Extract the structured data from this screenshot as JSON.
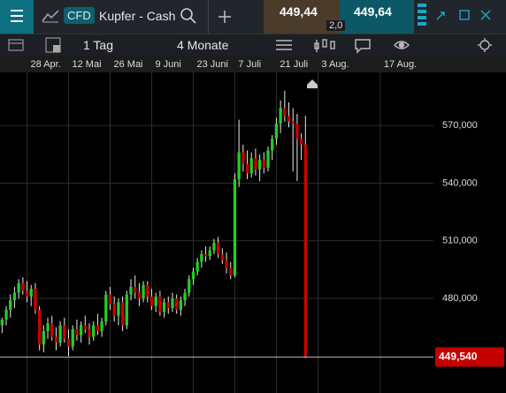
{
  "header": {
    "badge": "CFD",
    "instrument": "Kupfer - Cash",
    "bid": "449,44",
    "ask": "449,64",
    "spread": "2,0"
  },
  "toolbar": {
    "interval": "1 Tag",
    "range": "4 Monate"
  },
  "chart_data": {
    "type": "candlestick",
    "open": [
      466,
      469,
      474,
      479,
      483,
      488,
      484,
      481,
      485,
      474,
      456,
      463,
      467,
      460,
      457,
      466,
      459,
      455,
      464,
      461,
      466,
      464,
      460,
      466,
      463,
      468,
      482,
      477,
      471,
      478,
      466,
      482,
      486,
      483,
      480,
      487,
      481,
      476,
      481,
      473,
      478,
      475,
      480,
      474,
      479,
      483,
      490,
      494,
      499,
      503,
      502,
      505,
      509,
      503,
      500,
      496,
      492,
      542,
      556,
      550,
      545,
      553,
      547,
      552,
      548,
      557,
      563,
      571,
      579,
      575,
      572,
      571,
      563,
      560
    ],
    "high": [
      470,
      476,
      482,
      486,
      490,
      491,
      489,
      487,
      488,
      476,
      466,
      470,
      471,
      465,
      468,
      470,
      464,
      466,
      469,
      468,
      471,
      467,
      468,
      472,
      470,
      484,
      486,
      481,
      480,
      481,
      484,
      490,
      492,
      488,
      489,
      489,
      485,
      483,
      484,
      480,
      481,
      483,
      482,
      481,
      485,
      492,
      496,
      501,
      505,
      507,
      507,
      511,
      512,
      506,
      504,
      499,
      545,
      573,
      560,
      557,
      556,
      558,
      555,
      556,
      559,
      565,
      574,
      583,
      588,
      582,
      579,
      576,
      566,
      575
    ],
    "low": [
      462,
      466,
      470,
      475,
      480,
      482,
      478,
      476,
      472,
      453,
      452,
      459,
      458,
      453,
      455,
      457,
      450,
      453,
      458,
      457,
      462,
      456,
      458,
      461,
      460,
      466,
      474,
      468,
      466,
      463,
      464,
      479,
      480,
      476,
      478,
      478,
      474,
      473,
      471,
      470,
      472,
      473,
      472,
      471,
      476,
      481,
      487,
      492,
      496,
      499,
      500,
      503,
      501,
      498,
      493,
      490,
      491,
      538,
      546,
      542,
      543,
      544,
      541,
      545,
      546,
      552,
      560,
      566,
      572,
      569,
      546,
      541,
      552,
      449
    ],
    "close": [
      469,
      474,
      479,
      483,
      488,
      484,
      481,
      485,
      474,
      456,
      463,
      467,
      460,
      457,
      466,
      459,
      455,
      464,
      461,
      466,
      464,
      460,
      466,
      463,
      468,
      482,
      477,
      471,
      478,
      466,
      482,
      486,
      483,
      480,
      487,
      481,
      476,
      481,
      473,
      478,
      475,
      480,
      474,
      479,
      483,
      490,
      494,
      499,
      503,
      502,
      505,
      509,
      503,
      500,
      496,
      492,
      542,
      556,
      550,
      545,
      553,
      547,
      552,
      548,
      557,
      563,
      571,
      579,
      575,
      572,
      571,
      563,
      560,
      449.54
    ],
    "up_color": "#1fd11f",
    "down_color": "#cc0000",
    "wick_color": "#e8e8e8",
    "xlim": [
      -0.5,
      103.8
    ],
    "xticks": [
      {
        "value": 6,
        "label": "28 Apr."
      },
      {
        "value": 16,
        "label": "12 Mai"
      },
      {
        "value": 26,
        "label": "26 Mai"
      },
      {
        "value": 36,
        "label": "9 Juni"
      },
      {
        "value": 46,
        "label": "23 Juni"
      },
      {
        "value": 56,
        "label": "7 Juli"
      },
      {
        "value": 66,
        "label": "21 Juli"
      },
      {
        "value": 76,
        "label": "3 Aug."
      },
      {
        "value": 91,
        "label": "17 Aug."
      }
    ],
    "ylim": [
      430.8,
      597.6
    ],
    "yticks": [
      {
        "value": 480,
        "label": "480,000"
      },
      {
        "value": 510,
        "label": "510,000"
      },
      {
        "value": 540,
        "label": "540,000"
      },
      {
        "value": 570,
        "label": "570,000"
      }
    ],
    "last_price": {
      "value": 449.54,
      "label": "449,540"
    },
    "grid": true
  }
}
